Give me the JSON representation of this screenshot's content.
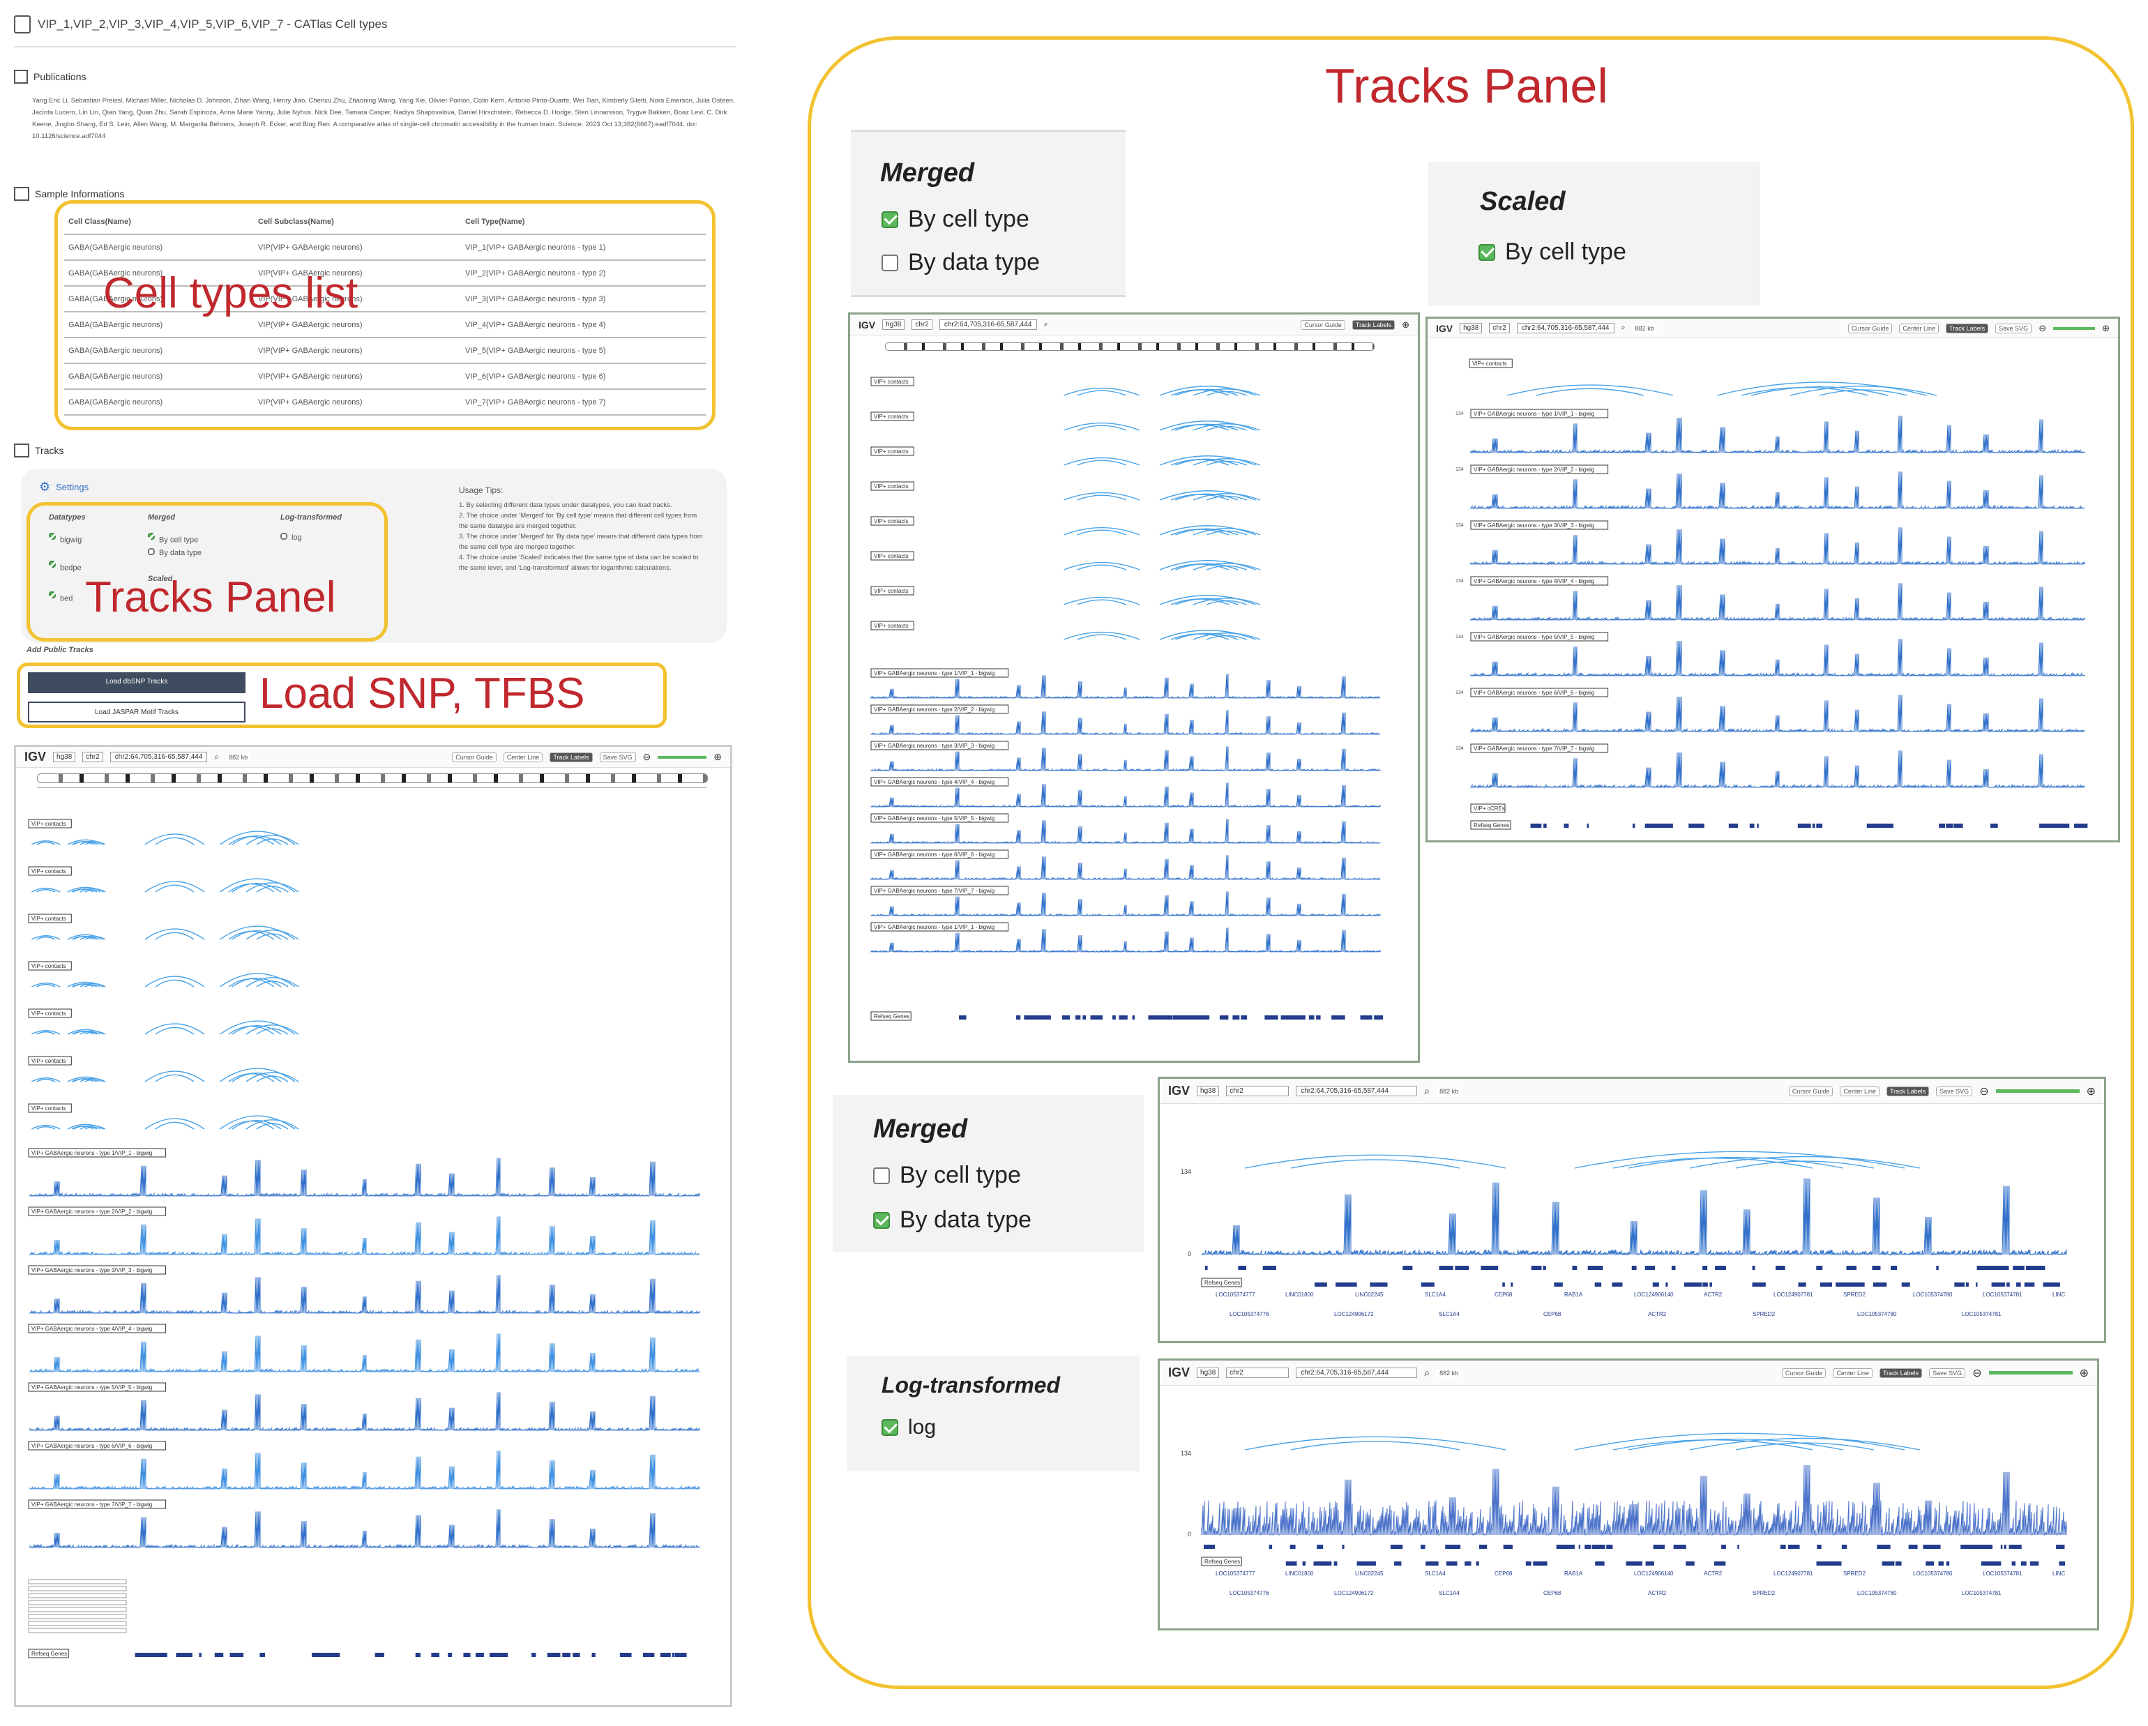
{
  "header": {
    "title": "VIP_1,VIP_2,VIP_3,VIP_4,VIP_5,VIP_6,VIP_7 - CATlas Cell types"
  },
  "publications": {
    "heading": "Publications",
    "citation": "Yang Eric Li, Sebastian Preissl, Michael Miller, Nicholas D. Johnson, Zihan Wang, Henry Jiao, Chenxu Zhu, Zhaoning Wang, Yang Xie, Olivier Poirion, Colin Kern, Antonio Pinto-Duarte, Wei Tian, Kimberly Siletti, Nora Emerson, Julia Osteen, Jacinta Lucero, Lin Lin, Qian Yang, Quan Zhu, Sarah Espinoza, Anna Marie Yanny, Julie Nyhus, Nick Dee, Tamara Casper, Nadiya Shapovalova, Daniel Hirschstein, Rebecca D. Hodge, Sten Linnarsson, Trygve Bakken, Boaz Levi, C. Dirk Keene, Jingbo Shang, Ed S. Lein, Allen Wang, M. Margarita Behrens, Joseph R. Ecker, and Bing Ren. A comparative atlas of single-cell chromatin accessibility in the human brain. Science. 2023 Oct 13;382(6667):eadf7044. doi: 10.1126/science.adf7044"
  },
  "sample_info": {
    "heading": "Sample Informations",
    "columns": [
      "Cell Class(Name)",
      "Cell Subclass(Name)",
      "Cell Type(Name)"
    ],
    "rows": [
      [
        "GABA(GABAergic neurons)",
        "VIP(VIP+ GABAergic neurons)",
        "VIP_1(VIP+ GABAergic neurons - type 1)"
      ],
      [
        "GABA(GABAergic neurons)",
        "VIP(VIP+ GABAergic neurons)",
        "VIP_2(VIP+ GABAergic neurons - type 2)"
      ],
      [
        "GABA(GABAergic neurons)",
        "VIP(VIP+ GABAergic neurons)",
        "VIP_3(VIP+ GABAergic neurons - type 3)"
      ],
      [
        "GABA(GABAergic neurons)",
        "VIP(VIP+ GABAergic neurons)",
        "VIP_4(VIP+ GABAergic neurons - type 4)"
      ],
      [
        "GABA(GABAergic neurons)",
        "VIP(VIP+ GABAergic neurons)",
        "VIP_5(VIP+ GABAergic neurons - type 5)"
      ],
      [
        "GABA(GABAergic neurons)",
        "VIP(VIP+ GABAergic neurons)",
        "VIP_6(VIP+ GABAergic neurons - type 6)"
      ],
      [
        "GABA(GABAergic neurons)",
        "VIP(VIP+ GABAergic neurons)",
        "VIP_7(VIP+ GABAergic neurons - type 7)"
      ]
    ]
  },
  "callouts": {
    "cell_types": "Cell types list",
    "tracks_panel": "Tracks Panel",
    "load": "Load SNP, TFBS",
    "right_panel": "Tracks Panel"
  },
  "tracks": {
    "heading": "Tracks",
    "settings_label": "Settings",
    "datatypes_title": "Datatypes",
    "datatypes": [
      "bigwig",
      "bedpe",
      "bed"
    ],
    "merged_title": "Merged",
    "merged_options": [
      "By cell type",
      "By data type"
    ],
    "log_title": "Log-transformed",
    "log_option": "log",
    "scaled_title": "Scaled",
    "usage_title": "Usage Tips:",
    "usage_lines": [
      "1. By selecting different data types under datatypes, you can load tracks.",
      "2. The choice under 'Merged' for 'By cell type' means that different cell types from the same datatype are merged together.",
      "3. The choice under 'Merged' for 'By data type' means that different data types from the same cell type are merged together.",
      "4. The choice under 'Scaled' indicates that the same type of data can be scaled to the same level, and 'Log-transformed' allows for logarithmic calculations."
    ],
    "public_title": "Add Public Tracks",
    "btn_dbsnp": "Load dbSNP Tracks",
    "btn_jaspar": "Load JASPAR Motif Tracks"
  },
  "settings_panels": {
    "merged1": {
      "title": "Merged",
      "options": [
        {
          "label": "By cell type",
          "checked": true
        },
        {
          "label": "By data type",
          "checked": false
        }
      ]
    },
    "scaled": {
      "title": "Scaled",
      "options": [
        {
          "label": "By cell type",
          "checked": true
        }
      ]
    },
    "merged2": {
      "title": "Merged",
      "options": [
        {
          "label": "By cell type",
          "checked": false
        },
        {
          "label": "By data type",
          "checked": true
        }
      ]
    },
    "log": {
      "title": "Log-transformed",
      "options": [
        {
          "label": "log",
          "checked": true
        }
      ]
    }
  },
  "igv": {
    "logo": "IGV",
    "genome": "hg38",
    "chrom": "chr2",
    "locus": "chr2:64,705,316-65,587,444",
    "span": "882 kb",
    "buttons": [
      "Cursor Guide",
      "Center Line",
      "Track Labels",
      "Save SVG"
    ],
    "ymax": "134",
    "ymin": "0",
    "contacts_label": "VIP+ contacts",
    "bigwig_labels": [
      "VIP+ GABAergic neurons - type 1/VIP_1 - bigwig",
      "VIP+ GABAergic neurons - type 2/VIP_2 - bigwig",
      "VIP+ GABAergic neurons - type 3/VIP_3 - bigwig",
      "VIP+ GABAergic neurons - type 4/VIP_4 - bigwig",
      "VIP+ GABAergic neurons - type 5/VIP_5 - bigwig",
      "VIP+ GABAergic neurons - type 6/VIP_6 - bigwig",
      "VIP+ GABAergic neurons - type 7/VIP_7 - bigwig"
    ],
    "ccre_label": "VIP+ cCREs",
    "refseq_label": "Refseq Genes",
    "genes_top": [
      "LOC105374777",
      "LINC01800",
      "LINC02245",
      "SLC1A4",
      "CEP68",
      "RAB1A",
      "LOC124906140",
      "ACTR2",
      "LOC124907781",
      "SPRED2",
      "LOC105374780",
      "LOC105374781",
      "LINC"
    ],
    "genes_bottom": [
      "LOC105374776",
      "LOC124906172",
      "SLC1A4",
      "CEP68",
      "ACTR2",
      "SPRED2",
      "LOC105374780",
      "LOC105374781"
    ],
    "accent": "#2f6fc9"
  }
}
